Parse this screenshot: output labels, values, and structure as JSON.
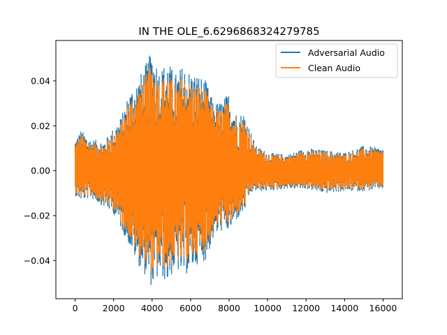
{
  "chart_data": {
    "type": "line",
    "title": "IN THE OLE_6.6296868324279785",
    "xlabel": "",
    "ylabel": "",
    "xlim": [
      -1000,
      17000
    ],
    "ylim": [
      -0.057,
      0.058
    ],
    "xticks": [
      0,
      2000,
      4000,
      6000,
      8000,
      10000,
      12000,
      14000,
      16000
    ],
    "xtick_labels": [
      "0",
      "2000",
      "4000",
      "6000",
      "8000",
      "10000",
      "12000",
      "14000",
      "16000"
    ],
    "yticks": [
      -0.04,
      -0.02,
      0.0,
      0.02,
      0.04
    ],
    "ytick_labels": [
      "−0.04",
      "−0.02",
      "0.00",
      "0.02",
      "0.04"
    ],
    "grid": false,
    "legend": "top-right",
    "envelope_note": "approximate amplitude envelope of the waveform (sample index, amplitude)",
    "envelope": {
      "x": [
        0,
        300,
        800,
        1500,
        2000,
        2400,
        2800,
        3200,
        3600,
        4000,
        4400,
        4800,
        5200,
        5600,
        6000,
        6400,
        6800,
        7200,
        7600,
        8000,
        8400,
        8800,
        9100,
        9400,
        10000,
        11000,
        12000,
        13000,
        14000,
        15000,
        16000
      ],
      "max": [
        0.014,
        0.018,
        0.014,
        0.013,
        0.019,
        0.024,
        0.035,
        0.04,
        0.046,
        0.054,
        0.045,
        0.049,
        0.043,
        0.047,
        0.044,
        0.043,
        0.04,
        0.03,
        0.031,
        0.035,
        0.025,
        0.026,
        0.018,
        0.011,
        0.008,
        0.007,
        0.01,
        0.009,
        0.008,
        0.011,
        0.01
      ],
      "min": [
        -0.011,
        -0.013,
        -0.012,
        -0.016,
        -0.019,
        -0.026,
        -0.033,
        -0.041,
        -0.046,
        -0.052,
        -0.047,
        -0.05,
        -0.044,
        -0.047,
        -0.045,
        -0.041,
        -0.04,
        -0.03,
        -0.027,
        -0.027,
        -0.022,
        -0.018,
        -0.01,
        -0.009,
        -0.009,
        -0.008,
        -0.008,
        -0.01,
        -0.009,
        -0.009,
        -0.008
      ]
    },
    "series": [
      {
        "name": "Adversarial Audio",
        "color": "#1f77b4",
        "scale": 1.0
      },
      {
        "name": "Clean Audio",
        "color": "#ff7f0e",
        "scale": 0.9
      }
    ]
  }
}
